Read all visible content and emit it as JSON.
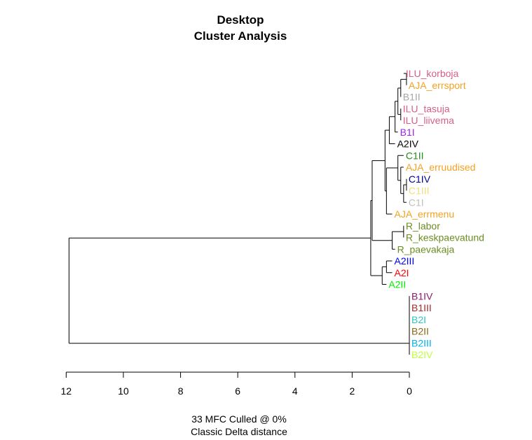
{
  "chart_data": {
    "type": "dendrogram",
    "title": "Desktop",
    "subtitle": "Cluster Analysis",
    "xlabel_line1": "33 MFC  Culled @ 0%",
    "xlabel_line2": "Classic Delta distance",
    "axis": {
      "ticks": [
        12,
        10,
        8,
        6,
        4,
        2,
        0
      ],
      "xlim": [
        12,
        0
      ],
      "reversed": true
    },
    "leaves": [
      {
        "label": "ILU_korboja",
        "color": "#d65f8b",
        "height": 0.2
      },
      {
        "label": "AJA_errsport",
        "color": "#f4a21f",
        "height": 0.1
      },
      {
        "label": "B1II",
        "color": "#a6a6a6",
        "height": 0.3
      },
      {
        "label": "ILU_tasuja",
        "color": "#d65f8b",
        "height": 0.3
      },
      {
        "label": "ILU_liivema",
        "color": "#d65f8b",
        "height": 0.3
      },
      {
        "label": "B1I",
        "color": "#a020f0",
        "height": 0.4
      },
      {
        "label": "A2IV",
        "color": "#000000",
        "height": 0.5
      },
      {
        "label": "C1II",
        "color": "#228b22",
        "height": 0.2
      },
      {
        "label": "AJA_erruudised",
        "color": "#f4a21f",
        "height": 0.2
      },
      {
        "label": "C1IV",
        "color": "#00008b",
        "height": 0.1
      },
      {
        "label": "C1III",
        "color": "#eedd82",
        "height": 0.1
      },
      {
        "label": "C1I",
        "color": "#bebebe",
        "height": 0.1
      },
      {
        "label": "AJA_errmenu",
        "color": "#f4a21f",
        "height": 0.6
      },
      {
        "label": "R_labor",
        "color": "#6b8e23",
        "height": 0.2
      },
      {
        "label": "R_keskpaevatund",
        "color": "#6b8e23",
        "height": 0.2
      },
      {
        "label": "R_paevakaja",
        "color": "#6b8e23",
        "height": 0.5
      },
      {
        "label": "A2III",
        "color": "#0000ff",
        "height": 0.6
      },
      {
        "label": "A2I",
        "color": "#ff0000",
        "height": 0.6
      },
      {
        "label": "A2II",
        "color": "#00ee00",
        "height": 0.8
      },
      {
        "label": "B1IV",
        "color": "#8b1a6e",
        "height": 0.0
      },
      {
        "label": "B1III",
        "color": "#a52a2a",
        "height": 0.0
      },
      {
        "label": "B2I",
        "color": "#2ec4c4",
        "height": 0.0
      },
      {
        "label": "B2II",
        "color": "#8b6914",
        "height": 0.0
      },
      {
        "label": "B2III",
        "color": "#00b2ee",
        "height": 0.0
      },
      {
        "label": "B2IV",
        "color": "#c0ff3e",
        "height": 0.0
      }
    ],
    "merges": [
      {
        "a": 0,
        "b": 1,
        "height": 0.1,
        "upper": 0
      },
      {
        "a": 2,
        "b": "m0",
        "height": 0.3,
        "upper": 0
      },
      {
        "a": 3,
        "b": 4,
        "height": 0.3,
        "upper": 0
      },
      {
        "a": "m1",
        "b": "m2",
        "height": 0.4,
        "upper": 0
      },
      {
        "a": "m3",
        "b": 5,
        "height": 0.5,
        "upper": 0
      },
      {
        "a": "m4",
        "b": 6,
        "height": 0.7,
        "upper": 0
      },
      {
        "a": 9,
        "b": 10,
        "height": 0.1,
        "upper": 0
      },
      {
        "a": "m6",
        "b": 11,
        "height": 0.2,
        "upper": 0
      },
      {
        "a": 8,
        "b": "m7",
        "height": 0.3,
        "upper": 0
      },
      {
        "a": 7,
        "b": "m8",
        "height": 0.4,
        "upper": 0
      },
      {
        "a": "m9",
        "b": 12,
        "height": 0.8,
        "upper": 0
      },
      {
        "a": "m5",
        "b": "m10",
        "height": 0.85,
        "upper": 0
      },
      {
        "a": 13,
        "b": 14,
        "height": 0.2,
        "upper": 0
      },
      {
        "a": "m12",
        "b": 15,
        "height": 0.6,
        "upper": 0
      },
      {
        "a": "m11",
        "b": "m13",
        "height": 1.3,
        "upper": 0
      },
      {
        "a": 16,
        "b": 17,
        "height": 0.8,
        "upper": 0
      },
      {
        "a": "m15",
        "b": 18,
        "height": 0.95,
        "upper": 0
      },
      {
        "a": "m14",
        "b": "m16",
        "height": 1.35,
        "upper": 0
      },
      {
        "a": 19,
        "b": 20,
        "height": 0.0,
        "upper": 0
      },
      {
        "a": "m18",
        "b": 21,
        "height": 0.0,
        "upper": 0
      },
      {
        "a": "m19",
        "b": 22,
        "height": 0.0,
        "upper": 0
      },
      {
        "a": "m20",
        "b": 23,
        "height": 0.0,
        "upper": 0
      },
      {
        "a": "m21",
        "b": 24,
        "height": 0.0,
        "upper": 0
      },
      {
        "a": "m17",
        "b": "m22",
        "height": 11.9,
        "upper": 0
      }
    ]
  }
}
